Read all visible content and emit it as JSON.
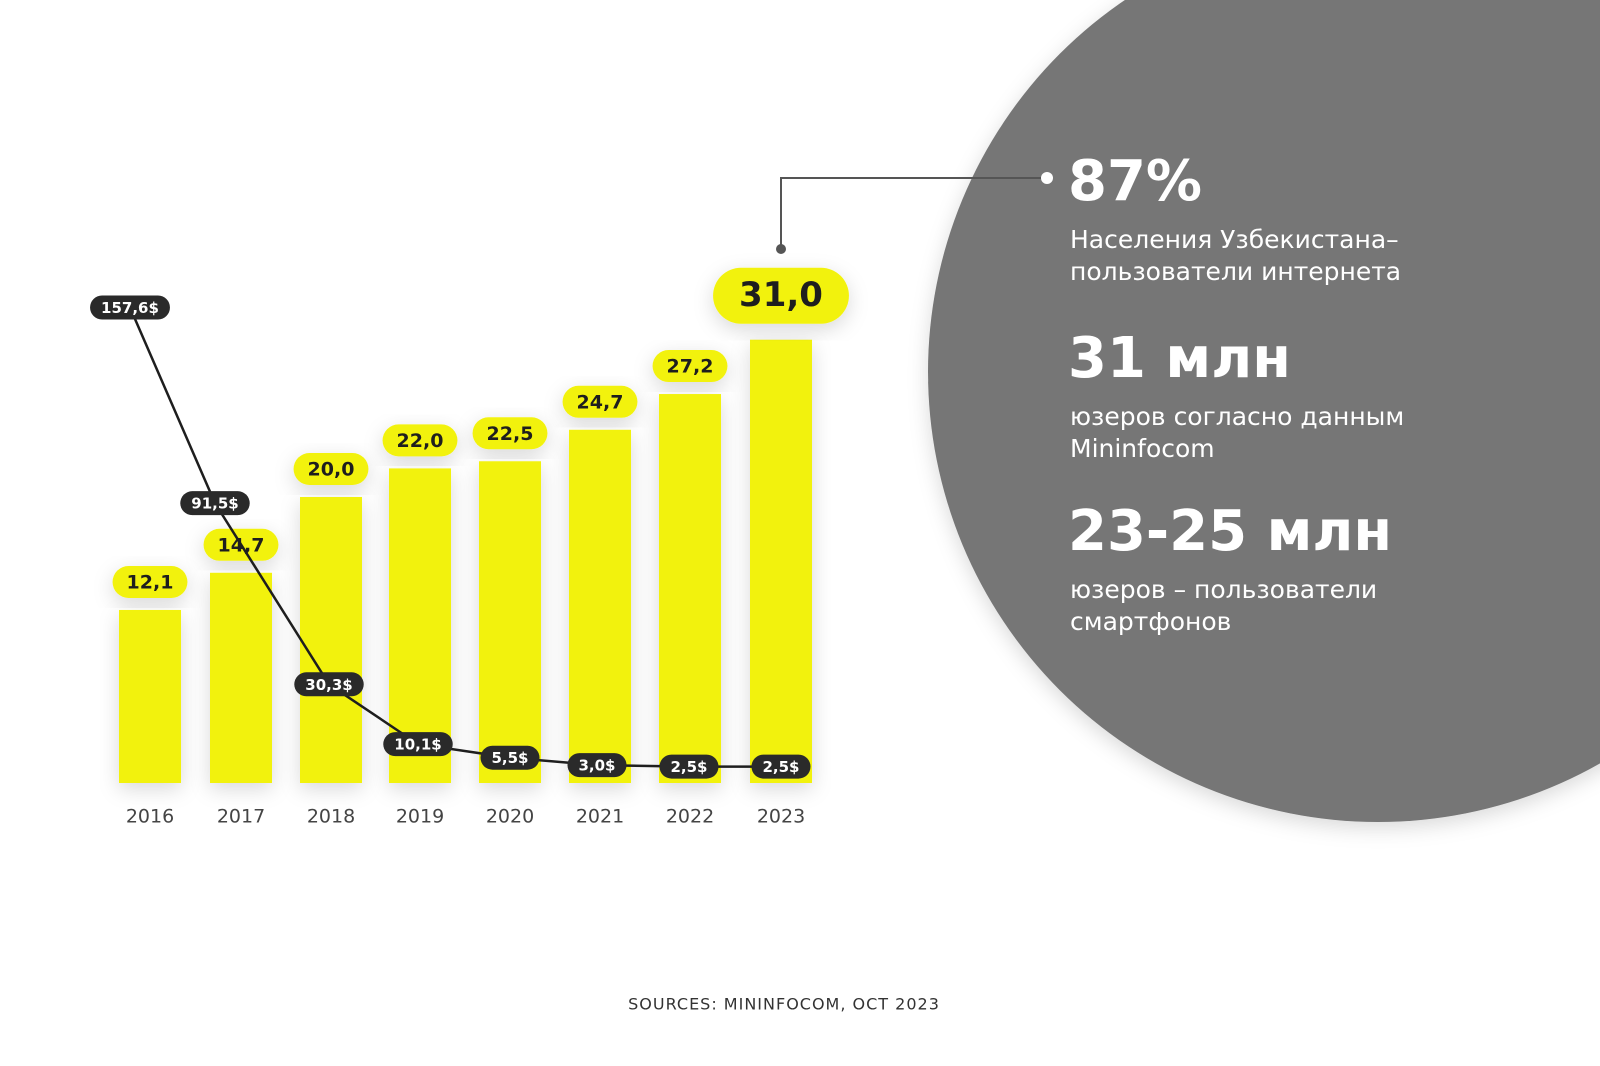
{
  "chart_data": {
    "type": "bar",
    "categories": [
      "2016",
      "2017",
      "2018",
      "2019",
      "2020",
      "2021",
      "2022",
      "2023"
    ],
    "series": [
      {
        "type": "bar",
        "color": "#f2f20f",
        "values": [
          12.1,
          14.7,
          20.0,
          22.0,
          22.5,
          24.7,
          27.2,
          31.0
        ],
        "value_labels": [
          "12,1",
          "14,7",
          "20,0",
          "22,0",
          "22,5",
          "24,7",
          "27,2",
          "31,0"
        ]
      },
      {
        "type": "line",
        "color": "#1e1e1e",
        "values": [
          157.6,
          91.5,
          30.3,
          10.1,
          5.5,
          3.0,
          2.5,
          2.5
        ],
        "value_labels": [
          "157,6$",
          "91,5$",
          "30,3$",
          "10,1$",
          "5,5$",
          "3,0$",
          "2,5$",
          "2,5$"
        ]
      }
    ],
    "annotations": [
      {
        "headline": "87%",
        "lines": [
          "Населения Узбекистана–",
          "пользователи интернета"
        ]
      },
      {
        "headline": "31 млн",
        "lines": [
          "юзеров согласно данным",
          "Mininfocom"
        ]
      },
      {
        "headline": "23-25 млн",
        "lines": [
          "юзеров – пользователи",
          "смартфонов"
        ]
      }
    ],
    "source": "SOURCES: MININFOCOM, OCT 2023"
  }
}
